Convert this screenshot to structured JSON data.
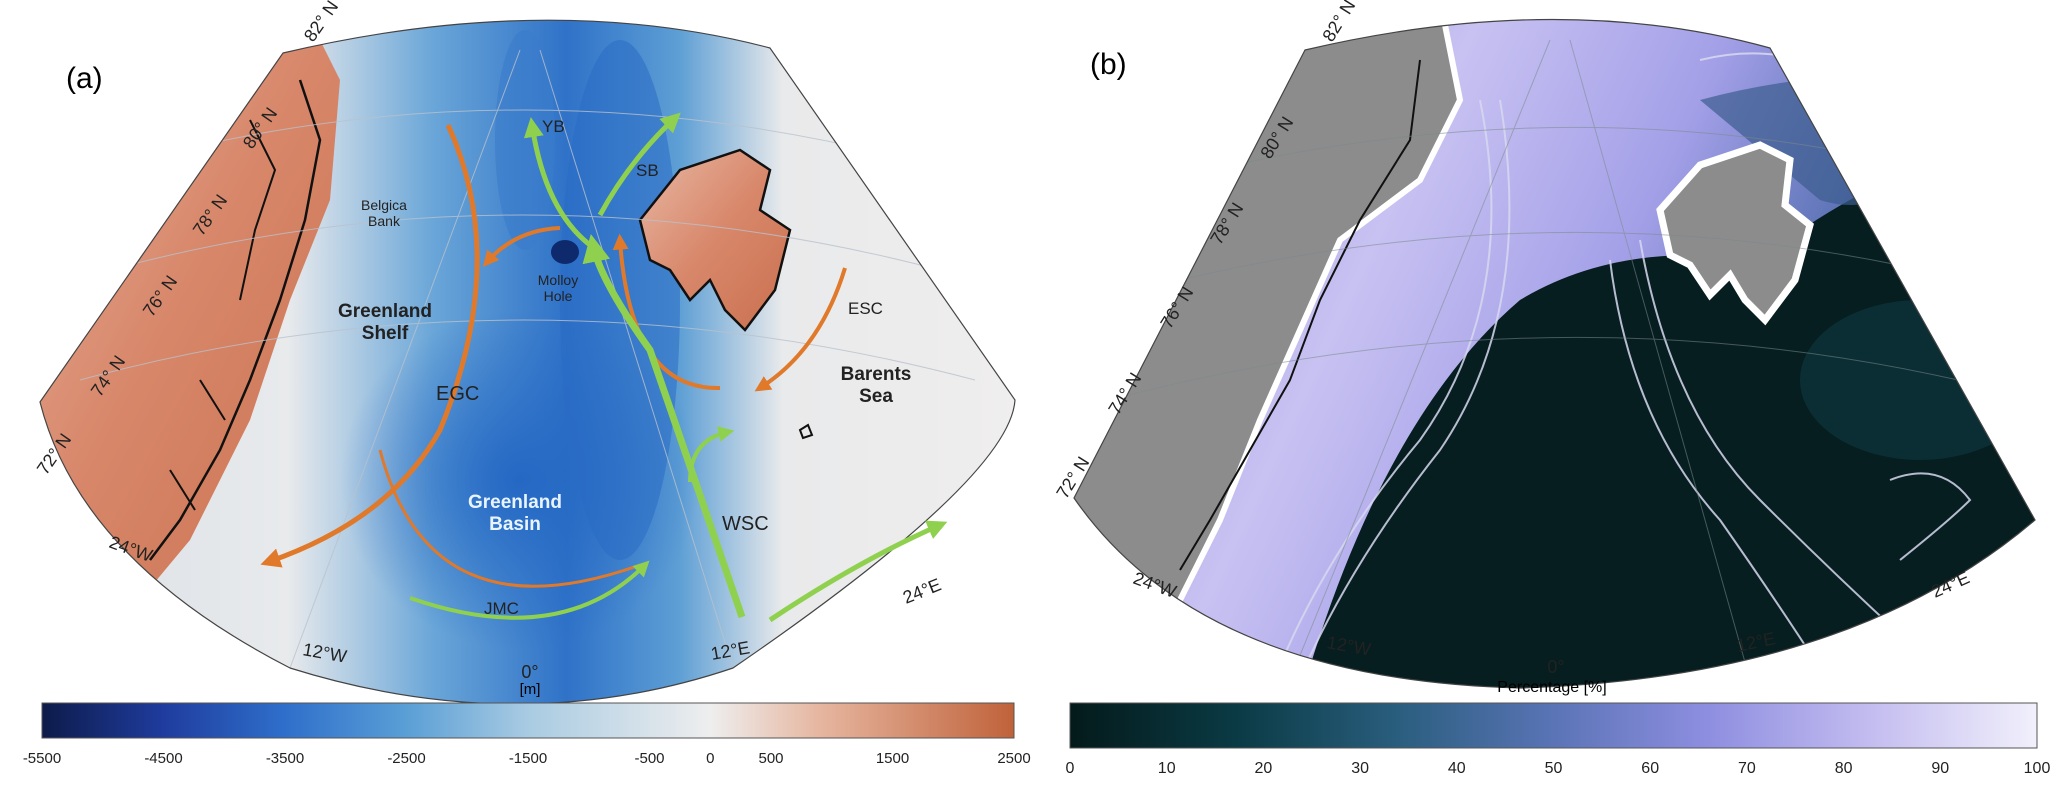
{
  "panel_a": {
    "label": "(a)",
    "lat_labels": [
      "82° N",
      "80° N",
      "78° N",
      "76° N",
      "74° N",
      "72° N"
    ],
    "lon_labels": [
      "24°W",
      "12°W",
      "0°",
      "12°E",
      "24°E"
    ],
    "place_labels": {
      "yb": "YB",
      "sb": "SB",
      "belgica_bank": "Belgica\nBank",
      "molloy_hole": "Molloy\nHole",
      "esc": "ESC",
      "greenland_shelf": "Greenland\nShelf",
      "egc": "EGC",
      "barents_sea": "Barents\nSea",
      "greenland_basin": "Greenland\nBasin",
      "wsc": "WSC",
      "jmc": "JMC"
    },
    "colorbar": {
      "unit": "[m]",
      "ticks": [
        "-5500",
        "-4500",
        "-3500",
        "-2500",
        "-1500",
        "-500",
        "0",
        "500",
        "1500",
        "2500"
      ],
      "tick_values": [
        -5500,
        -4500,
        -3500,
        -2500,
        -1500,
        -500,
        0,
        500,
        1500,
        2500
      ],
      "range": [
        -5500,
        2500
      ],
      "stops": [
        "#0d1b4a",
        "#1f3c9e",
        "#2f6fcb",
        "#5a9fd6",
        "#a9cbe2",
        "#eeeeee",
        "#e6b6a0",
        "#c0623a"
      ]
    },
    "colors": {
      "warm_current": "#e07a2a",
      "cold_current": "#8fd14f"
    }
  },
  "panel_b": {
    "label": "(b)",
    "lat_labels": [
      "82° N",
      "80° N",
      "78° N",
      "76° N",
      "74° N",
      "72° N"
    ],
    "lon_labels": [
      "24°W",
      "12°W",
      "0°",
      "12°E",
      "24°E"
    ],
    "colorbar": {
      "label": "Percentage [%]",
      "ticks": [
        "0",
        "10",
        "20",
        "30",
        "40",
        "50",
        "60",
        "70",
        "80",
        "90",
        "100"
      ],
      "tick_values": [
        0,
        10,
        20,
        30,
        40,
        50,
        60,
        70,
        80,
        90,
        100
      ],
      "range": [
        0,
        100
      ],
      "stops": [
        "#041a1a",
        "#0a3a44",
        "#2a5e7e",
        "#5a74b6",
        "#8e8ee0",
        "#c4bdf0",
        "#f1f0fb"
      ]
    },
    "colors": {
      "land": "#8c8c8c"
    }
  }
}
